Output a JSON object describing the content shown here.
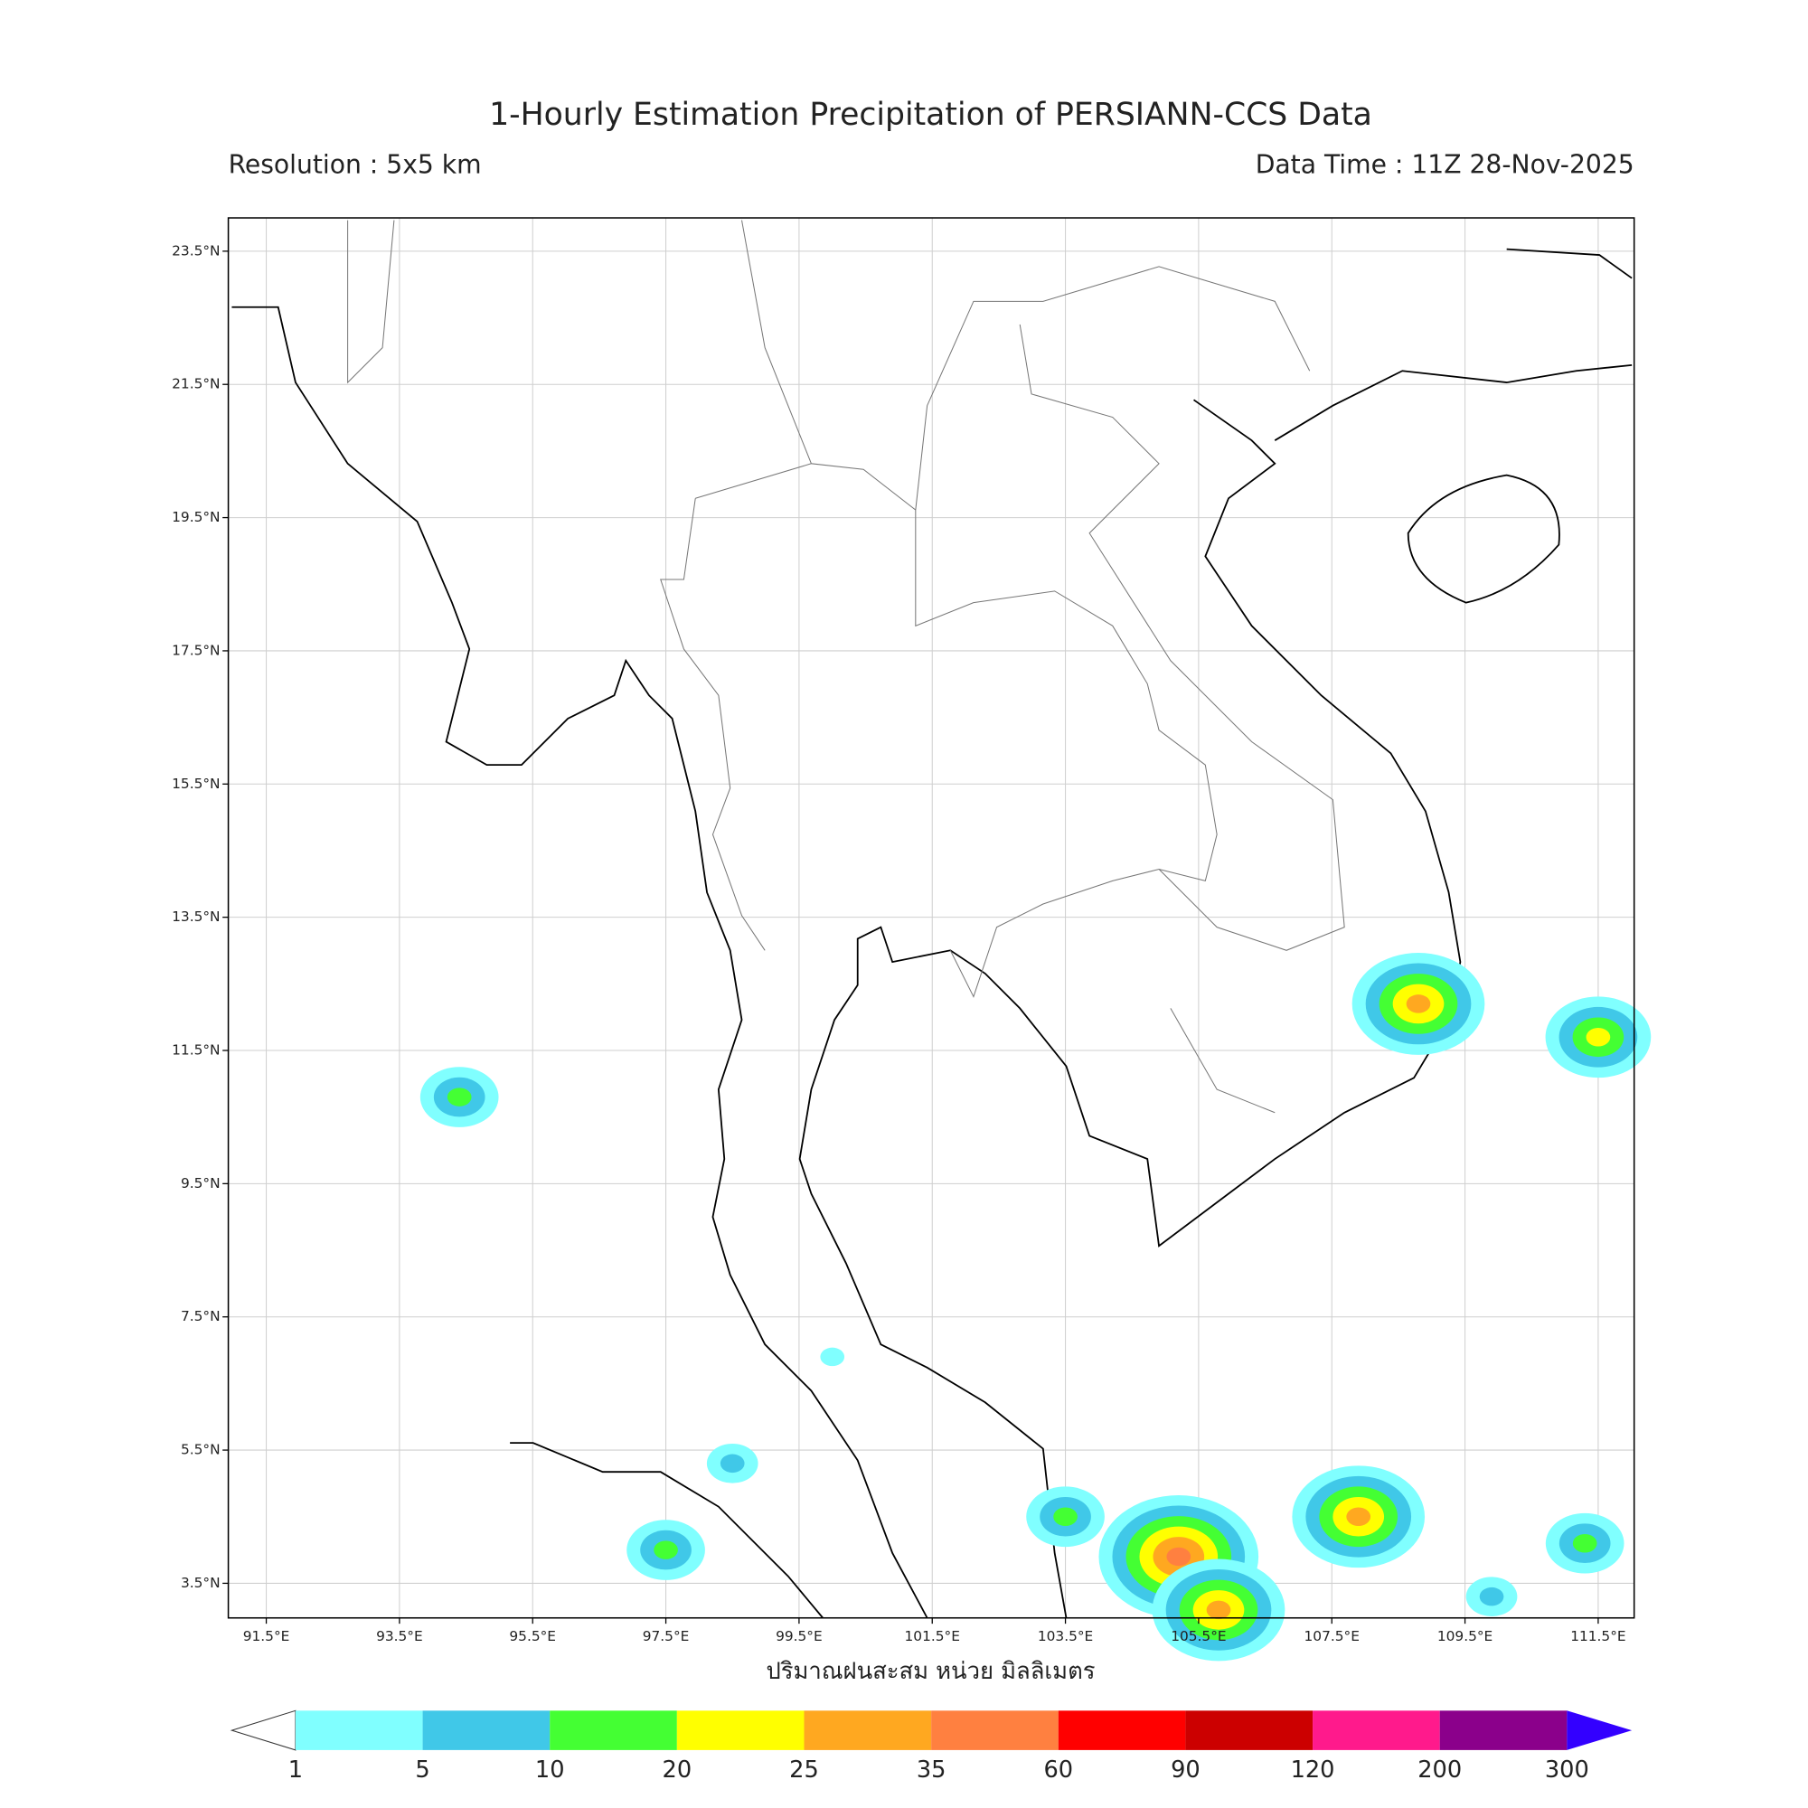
{
  "title": "1-Hourly Estimation Precipitation of PERSIANN-CCS Data",
  "resolution": "Resolution : 5x5 km",
  "data_time": "Data Time : 11Z 28-Nov-2025",
  "map": {
    "lonlim": [
      90.93,
      112.04
    ],
    "latlim": [
      2.98,
      24.0
    ],
    "xticks": [
      {
        "value": 91.5,
        "label": "91.5°E"
      },
      {
        "value": 93.5,
        "label": "93.5°E"
      },
      {
        "value": 95.5,
        "label": "95.5°E"
      },
      {
        "value": 97.5,
        "label": "97.5°E"
      },
      {
        "value": 99.5,
        "label": "99.5°E"
      },
      {
        "value": 101.5,
        "label": "101.5°E"
      },
      {
        "value": 103.5,
        "label": "103.5°E"
      },
      {
        "value": 105.5,
        "label": "105.5°E"
      },
      {
        "value": 107.5,
        "label": "107.5°E"
      },
      {
        "value": 109.5,
        "label": "109.5°E"
      },
      {
        "value": 111.5,
        "label": "111.5°E"
      }
    ],
    "yticks": [
      {
        "value": 3.5,
        "label": "3.5°N"
      },
      {
        "value": 5.5,
        "label": "5.5°N"
      },
      {
        "value": 7.5,
        "label": "7.5°N"
      },
      {
        "value": 9.5,
        "label": "9.5°N"
      },
      {
        "value": 11.5,
        "label": "11.5°N"
      },
      {
        "value": 13.5,
        "label": "13.5°N"
      },
      {
        "value": 15.5,
        "label": "15.5°N"
      },
      {
        "value": 17.5,
        "label": "17.5°N"
      },
      {
        "value": 19.5,
        "label": "19.5°N"
      },
      {
        "value": 21.5,
        "label": "21.5°N"
      },
      {
        "value": 23.5,
        "label": "23.5°N"
      }
    ],
    "grid": true,
    "rain_cells": [
      {
        "lon": 111.5,
        "lat": 11.7,
        "mm": 22
      },
      {
        "lon": 103.5,
        "lat": 4.5,
        "mm": 12
      },
      {
        "lon": 105.2,
        "lat": 3.9,
        "mm": 40
      },
      {
        "lon": 107.9,
        "lat": 4.5,
        "mm": 30
      },
      {
        "lon": 108.8,
        "lat": 12.2,
        "mm": 30
      },
      {
        "lon": 98.5,
        "lat": 5.3,
        "mm": 6
      },
      {
        "lon": 109.9,
        "lat": 3.3,
        "mm": 7
      },
      {
        "lon": 94.4,
        "lat": 10.8,
        "mm": 12
      },
      {
        "lon": 97.5,
        "lat": 4.0,
        "mm": 12
      },
      {
        "lon": 105.8,
        "lat": 3.1,
        "mm": 30
      },
      {
        "lon": 111.3,
        "lat": 4.1,
        "mm": 12
      },
      {
        "lon": 100.0,
        "lat": 6.9,
        "mm": 4
      }
    ]
  },
  "colorbar": {
    "label": "ปริมาณฝนสะสม หน่วย มิลลิเมตร",
    "levels": [
      1,
      5,
      10,
      20,
      25,
      35,
      60,
      90,
      120,
      200,
      300
    ],
    "colors": [
      "#ffffff",
      "#80ffff",
      "#40c8e8",
      "#44ff33",
      "#ffff00",
      "#ffa820",
      "#ff8040",
      "#ff0000",
      "#cc0000",
      "#ff1a8c",
      "#8b008b",
      "#3300ff"
    ]
  }
}
